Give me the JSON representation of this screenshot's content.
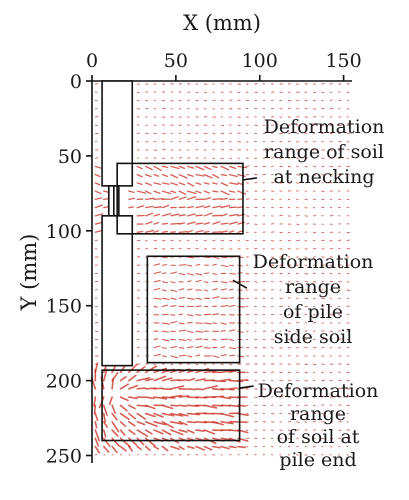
{
  "chart_data": {
    "type": "quiver",
    "x_label": "X (mm)",
    "y_label": "Y (mm)",
    "x_ticks": [
      "0",
      "50",
      "100",
      "150"
    ],
    "y_ticks": [
      "0",
      "50",
      "100",
      "150",
      "200",
      "250"
    ],
    "xlim": [
      0,
      155
    ],
    "ylim": [
      0,
      255
    ],
    "y_axis_inverted": true,
    "x_axis_position": "top",
    "vector_color": "#c8281c",
    "pile": {
      "upper_segment": {
        "x": [
          6,
          24
        ],
        "y": [
          0,
          70
        ]
      },
      "neck_segment": {
        "x": [
          10,
          16
        ],
        "y": [
          70,
          90
        ]
      },
      "lower_segment": {
        "x": [
          6,
          24
        ],
        "y": [
          90,
          190
        ]
      }
    },
    "regions": [
      {
        "name": "necking",
        "x": [
          15,
          90
        ],
        "y": [
          55,
          102
        ],
        "label_lines": [
          "Deformation",
          "range of soil",
          "at necking"
        ],
        "pointer_to": [
          90,
          66
        ]
      },
      {
        "name": "pile-side",
        "x": [
          33,
          88
        ],
        "y": [
          117,
          188
        ],
        "label_lines": [
          "Deformation",
          "range",
          "of pile",
          "side soil"
        ],
        "pointer_to": [
          84,
          133
        ]
      },
      {
        "name": "pile-end",
        "x": [
          6,
          88
        ],
        "y": [
          193,
          240
        ],
        "label_lines": [
          "Deformation",
          "range",
          "of soil at",
          "pile end"
        ],
        "pointer_to": [
          88,
          205
        ]
      }
    ]
  }
}
